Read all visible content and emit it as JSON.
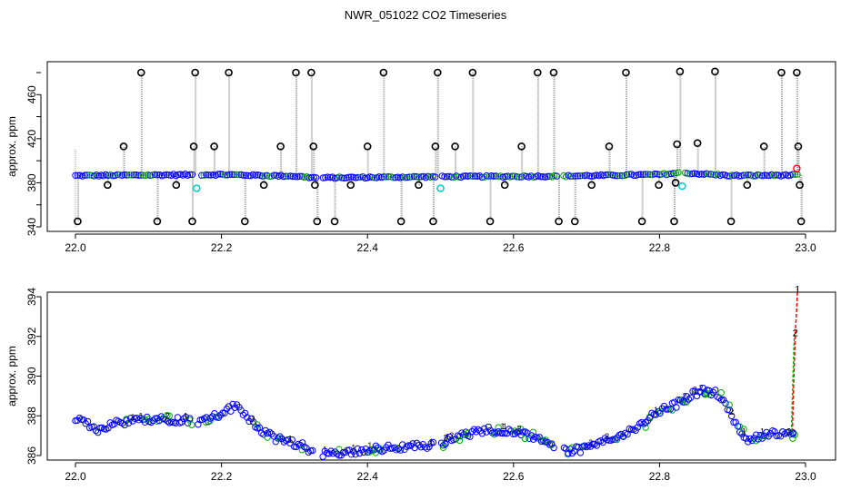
{
  "title": "NWR_051022  CO2 Timeseries",
  "chart_data": [
    {
      "type": "scatter",
      "title": "",
      "xlabel": "",
      "ylabel": "approx. ppm",
      "xlim": [
        22.0,
        23.0
      ],
      "ylim": [
        340,
        480
      ],
      "xticks": [
        "22.0",
        "22.2",
        "22.4",
        "22.6",
        "22.8",
        "23.0"
      ],
      "yticks": [
        "340",
        "380",
        "420",
        "460"
      ],
      "grid": false,
      "legend": "none",
      "colors": {
        "main": "#0000ff",
        "alt": "#00a000",
        "outlier": "#000000",
        "flag": "#00d0d0",
        "red": "#ff0000",
        "line": "#9a9a9a"
      },
      "baseline": [
        [
          22.0,
          386.5
        ],
        [
          22.2,
          387.5
        ],
        [
          22.3,
          386.0
        ],
        [
          22.33,
          384.5
        ],
        [
          22.5,
          385.5
        ],
        [
          22.66,
          386.0
        ],
        [
          22.8,
          387.5
        ],
        [
          22.83,
          389.0
        ],
        [
          22.9,
          386.5
        ],
        [
          22.99,
          387.0
        ]
      ],
      "gaps": [
        [
          22.163,
          22.171
        ],
        [
          22.33,
          22.338
        ],
        [
          22.494,
          22.501
        ],
        [
          22.66,
          22.668
        ],
        [
          22.828,
          22.835
        ]
      ],
      "outlier_points": [
        {
          "x": 22.003,
          "y": 345
        },
        {
          "x": 22.044,
          "y": 378
        },
        {
          "x": 22.066,
          "y": 413
        },
        {
          "x": 22.09,
          "y": 480
        },
        {
          "x": 22.112,
          "y": 345
        },
        {
          "x": 22.138,
          "y": 378
        },
        {
          "x": 22.16,
          "y": 345
        },
        {
          "x": 22.162,
          "y": 413
        },
        {
          "x": 22.164,
          "y": 480
        },
        {
          "x": 22.19,
          "y": 413
        },
        {
          "x": 22.21,
          "y": 480
        },
        {
          "x": 22.232,
          "y": 345
        },
        {
          "x": 22.258,
          "y": 378
        },
        {
          "x": 22.281,
          "y": 413
        },
        {
          "x": 22.302,
          "y": 480
        },
        {
          "x": 22.323,
          "y": 480
        },
        {
          "x": 22.326,
          "y": 413
        },
        {
          "x": 22.328,
          "y": 378
        },
        {
          "x": 22.331,
          "y": 345
        },
        {
          "x": 22.355,
          "y": 345
        },
        {
          "x": 22.377,
          "y": 378
        },
        {
          "x": 22.4,
          "y": 413
        },
        {
          "x": 22.422,
          "y": 480
        },
        {
          "x": 22.446,
          "y": 345
        },
        {
          "x": 22.47,
          "y": 378
        },
        {
          "x": 22.49,
          "y": 345
        },
        {
          "x": 22.493,
          "y": 413
        },
        {
          "x": 22.496,
          "y": 480
        },
        {
          "x": 22.52,
          "y": 413
        },
        {
          "x": 22.544,
          "y": 480
        },
        {
          "x": 22.568,
          "y": 345
        },
        {
          "x": 22.588,
          "y": 378
        },
        {
          "x": 22.611,
          "y": 413
        },
        {
          "x": 22.633,
          "y": 480
        },
        {
          "x": 22.655,
          "y": 480
        },
        {
          "x": 22.662,
          "y": 345
        },
        {
          "x": 22.684,
          "y": 345
        },
        {
          "x": 22.707,
          "y": 378
        },
        {
          "x": 22.731,
          "y": 413
        },
        {
          "x": 22.754,
          "y": 480
        },
        {
          "x": 22.776,
          "y": 345
        },
        {
          "x": 22.799,
          "y": 378
        },
        {
          "x": 22.82,
          "y": 345
        },
        {
          "x": 22.822,
          "y": 380
        },
        {
          "x": 22.824,
          "y": 415
        },
        {
          "x": 22.828,
          "y": 481
        },
        {
          "x": 22.852,
          "y": 416
        },
        {
          "x": 22.876,
          "y": 481
        },
        {
          "x": 22.898,
          "y": 345
        },
        {
          "x": 22.92,
          "y": 378
        },
        {
          "x": 22.943,
          "y": 413
        },
        {
          "x": 22.967,
          "y": 480
        },
        {
          "x": 22.988,
          "y": 480
        },
        {
          "x": 22.99,
          "y": 413
        },
        {
          "x": 22.992,
          "y": 378
        },
        {
          "x": 22.994,
          "y": 345
        }
      ],
      "flag_points": [
        {
          "x": 22.166,
          "y": 375
        },
        {
          "x": 22.5,
          "y": 375
        },
        {
          "x": 22.831,
          "y": 377
        }
      ],
      "red_points": [
        {
          "x": 22.988,
          "y": 393
        }
      ]
    },
    {
      "type": "scatter",
      "title": "",
      "xlabel": "",
      "ylabel": "approx. ppm",
      "xlim": [
        22.0,
        23.0
      ],
      "ylim": [
        386,
        394
      ],
      "xticks": [
        "22.0",
        "22.2",
        "22.4",
        "22.6",
        "22.8",
        "23.0"
      ],
      "yticks": [
        "386",
        "388",
        "390",
        "392",
        "394"
      ],
      "grid": false,
      "legend": "none",
      "colors": {
        "main": "#0000ff",
        "alt": "#00b000",
        "red": "#ff0000"
      },
      "baseline": [
        [
          22.0,
          387.7
        ],
        [
          22.01,
          387.75
        ],
        [
          22.02,
          387.5
        ],
        [
          22.03,
          387.3
        ],
        [
          22.05,
          387.6
        ],
        [
          22.07,
          387.7
        ],
        [
          22.09,
          387.8
        ],
        [
          22.11,
          387.85
        ],
        [
          22.13,
          387.8
        ],
        [
          22.155,
          387.8
        ],
        [
          22.17,
          387.7
        ],
        [
          22.19,
          387.95
        ],
        [
          22.21,
          388.35
        ],
        [
          22.22,
          388.5
        ],
        [
          22.23,
          388.2
        ],
        [
          22.25,
          387.4
        ],
        [
          22.27,
          386.9
        ],
        [
          22.29,
          386.7
        ],
        [
          22.31,
          386.5
        ],
        [
          22.33,
          386.1
        ],
        [
          22.34,
          386.1
        ],
        [
          22.36,
          386.1
        ],
        [
          22.38,
          386.2
        ],
        [
          22.4,
          386.3
        ],
        [
          22.42,
          386.35
        ],
        [
          22.44,
          386.4
        ],
        [
          22.46,
          386.5
        ],
        [
          22.49,
          386.5
        ],
        [
          22.5,
          386.6
        ],
        [
          22.52,
          386.9
        ],
        [
          22.54,
          387.1
        ],
        [
          22.56,
          387.3
        ],
        [
          22.58,
          387.3
        ],
        [
          22.6,
          387.25
        ],
        [
          22.62,
          387.0
        ],
        [
          22.64,
          386.7
        ],
        [
          22.66,
          386.45
        ],
        [
          22.67,
          386.2
        ],
        [
          22.69,
          386.3
        ],
        [
          22.71,
          386.5
        ],
        [
          22.73,
          386.8
        ],
        [
          22.75,
          387.0
        ],
        [
          22.77,
          387.4
        ],
        [
          22.79,
          388.0
        ],
        [
          22.81,
          388.4
        ],
        [
          22.83,
          388.7
        ],
        [
          22.845,
          389.1
        ],
        [
          22.86,
          389.25
        ],
        [
          22.875,
          389.2
        ],
        [
          22.89,
          388.6
        ],
        [
          22.905,
          387.6
        ],
        [
          22.92,
          386.8
        ],
        [
          22.935,
          387.0
        ],
        [
          22.955,
          387.1
        ],
        [
          22.975,
          387.0
        ],
        [
          22.985,
          387.1
        ]
      ],
      "gaps": [
        [
          22.158,
          22.168
        ],
        [
          22.327,
          22.338
        ],
        [
          22.491,
          22.499
        ],
        [
          22.657,
          22.668
        ]
      ],
      "spike": [
        [
          22.982,
          387.2
        ],
        [
          22.984,
          390.0
        ],
        [
          22.986,
          392.2
        ],
        [
          22.988,
          393.5
        ],
        [
          22.989,
          394.4
        ]
      ],
      "annotations": [
        "1",
        "2"
      ]
    }
  ]
}
